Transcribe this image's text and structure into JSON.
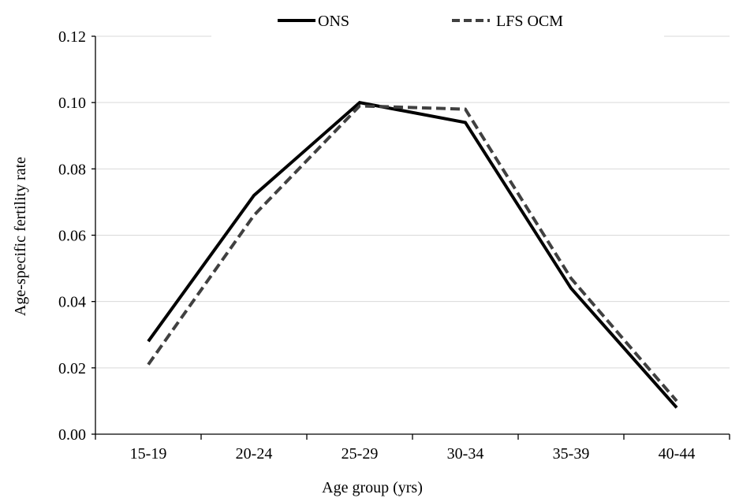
{
  "chart_data": {
    "type": "line",
    "title": "",
    "xlabel": "Age group (yrs)",
    "ylabel": "Age-specific fertility rate",
    "categories": [
      "15-19",
      "20-24",
      "25-29",
      "30-34",
      "35-39",
      "40-44"
    ],
    "ylim": [
      0,
      0.12
    ],
    "yticks": [
      "0.00",
      "0.02",
      "0.04",
      "0.06",
      "0.08",
      "0.10",
      "0.12"
    ],
    "grid": true,
    "legend_position": "top-center",
    "series": [
      {
        "name": "ONS",
        "values": [
          0.028,
          0.072,
          0.1,
          0.094,
          0.044,
          0.008
        ],
        "color": "#000000",
        "dash": "solid"
      },
      {
        "name": "LFS OCM",
        "values": [
          0.021,
          0.066,
          0.099,
          0.098,
          0.047,
          0.01
        ],
        "color": "#404040",
        "dash": "dashed"
      }
    ]
  }
}
